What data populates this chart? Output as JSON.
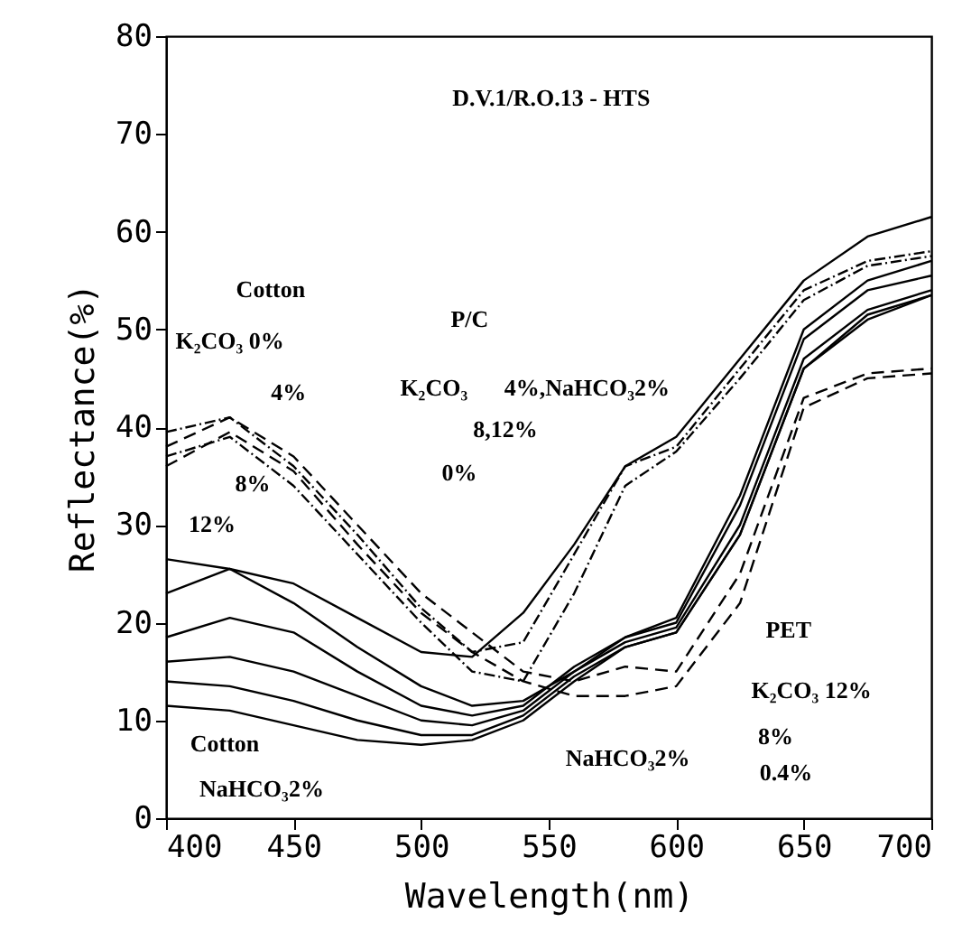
{
  "chart_data": {
    "type": "line",
    "xlabel": "Wavelength(nm)",
    "ylabel": "Reflectance(%)",
    "x": [
      400,
      425,
      450,
      475,
      500,
      520,
      540,
      560,
      580,
      600,
      625,
      650,
      675,
      700
    ],
    "series": [
      {
        "color": "#000000",
        "line_style": "solid",
        "values": [
          23,
          25.5,
          24,
          20.5,
          17,
          16.5,
          21,
          28,
          36,
          39,
          47,
          55,
          59.5,
          61.5
        ]
      },
      {
        "color": "#000000",
        "line_style": "solid",
        "values": [
          26.5,
          25.5,
          22,
          17.5,
          13.5,
          11.5,
          12,
          15,
          18.5,
          20.5,
          33,
          50,
          55,
          57
        ]
      },
      {
        "color": "#000000",
        "line_style": "solid",
        "values": [
          18.5,
          20.5,
          19,
          15,
          11.5,
          10.5,
          11.5,
          15.5,
          18.5,
          20,
          32,
          49,
          54,
          55.5
        ]
      },
      {
        "color": "#000000",
        "line_style": "solid",
        "values": [
          16,
          16.5,
          15,
          12.5,
          10,
          9.5,
          11,
          15,
          18,
          19.5,
          30,
          47,
          52,
          54
        ]
      },
      {
        "color": "#000000",
        "line_style": "solid",
        "values": [
          14,
          13.5,
          12,
          10,
          8.5,
          8.5,
          10.5,
          14.5,
          17.5,
          19,
          29,
          46,
          51.5,
          53.5
        ]
      },
      {
        "color": "#000000",
        "line_style": "solid",
        "values": [
          11.5,
          11,
          9.5,
          8,
          7.5,
          8,
          10,
          14,
          17.5,
          19,
          29,
          46,
          51,
          53.5
        ]
      },
      {
        "color": "#000000",
        "line_style": "dashed",
        "values": [
          38,
          41,
          37,
          30,
          23,
          19,
          15,
          14,
          15.5,
          15,
          25,
          43,
          45.5,
          46
        ]
      },
      {
        "color": "#000000",
        "line_style": "dashed",
        "values": [
          36,
          39.5,
          35.5,
          28,
          21,
          17,
          14,
          12.5,
          12.5,
          13.5,
          22,
          42,
          45,
          45.5
        ]
      },
      {
        "color": "#000000",
        "line_style": "dotted",
        "values": [
          39.5,
          41,
          36,
          29,
          21.5,
          17,
          18,
          27,
          36,
          38,
          46,
          54,
          57,
          58
        ]
      },
      {
        "color": "#000000",
        "line_style": "dotted",
        "values": [
          37,
          39,
          34,
          27,
          20,
          15,
          14,
          23,
          34,
          37.5,
          45,
          53,
          56.5,
          57.5
        ]
      }
    ],
    "xlim": [
      400,
      700
    ],
    "ylim": [
      0,
      80
    ],
    "xticks": [
      400,
      450,
      500,
      550,
      600,
      650,
      700
    ],
    "yticks": [
      0,
      10,
      20,
      30,
      40,
      50,
      60,
      70,
      80
    ],
    "annotations": [
      "D.V.1/R.O.13 - HTS",
      "Cotton",
      "P/C",
      "K₂CO₃ 0%",
      "4%",
      "K₂CO₃",
      "4%,NaHCO₃2%",
      "8,12%",
      "0%",
      "8%",
      "12%",
      "Cotton",
      "NaHCO₃2%",
      "PET",
      "K₂CO₃ 12%",
      "8%",
      "NaHCO₃2%",
      "0.4%"
    ]
  }
}
